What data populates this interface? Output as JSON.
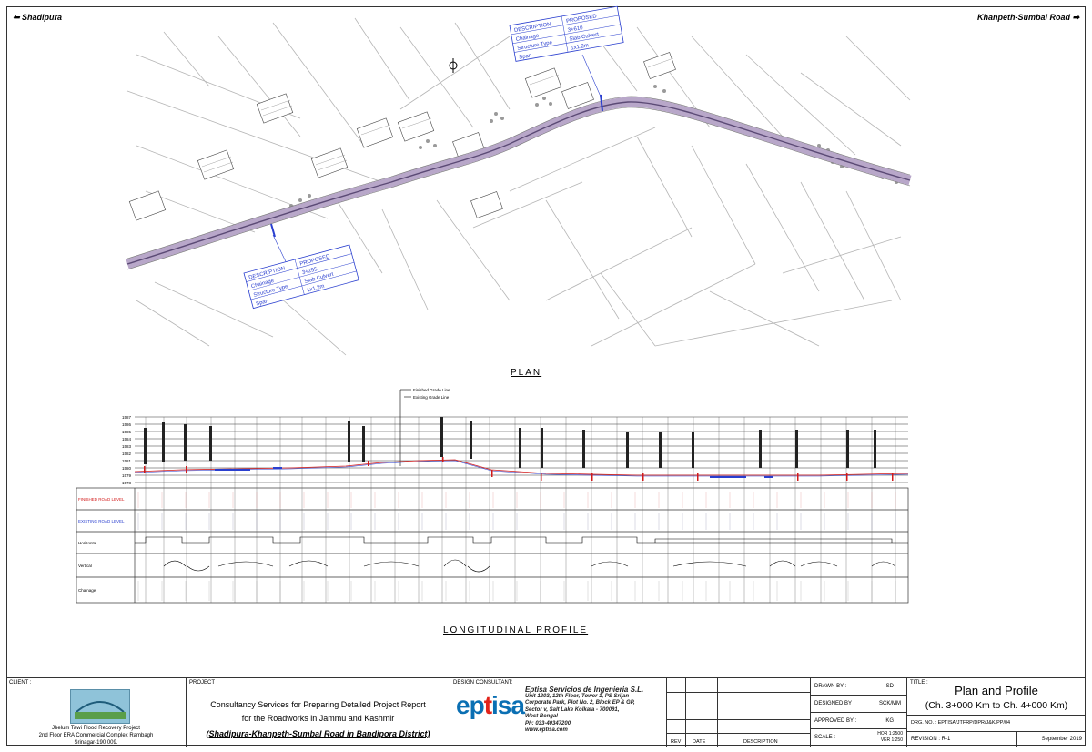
{
  "directions": {
    "left": "⬅ Shadipura",
    "right": "Khanpeth-Sumbal Road ➡"
  },
  "plan": {
    "title": "PLAN",
    "callout_top": {
      "header_desc": "DESCRIPTION",
      "header_prop": "PROPOSED",
      "r1k": "Chainage",
      "r1v": "3+610",
      "r2k": "Structure Type",
      "r2v": "Slab Culvert",
      "r3k": "Span",
      "r3v": "1x1.2m"
    },
    "callout_bottom": {
      "header_desc": "DESCRIPTION",
      "header_prop": "PROPOSED",
      "r1k": "Chainage",
      "r1v": "3+255",
      "r2k": "Structure Type",
      "r2v": "Slab Culvert",
      "r3k": "Span",
      "r3v": "1x1.2m"
    }
  },
  "profile": {
    "title": "LONGITUDINAL PROFILE",
    "legend": [
      "Finished Grade Line",
      "Existing Grade Line"
    ],
    "levels": [
      "1587",
      "1586",
      "1585",
      "1584",
      "1583",
      "1582",
      "1581",
      "1580",
      "1579",
      "1578"
    ],
    "row_labels": [
      "FINISHED ROAD LEVEL",
      "EXISTING ROAD LEVEL",
      "Horizontal",
      "Vertical",
      "Chainage"
    ]
  },
  "title_block": {
    "client_label": "CLIENT :",
    "client_lines": [
      "Jhelum Tawi Flood Recovery Project",
      "2nd Floor ERA Commercial Complex Rambagh",
      "Srinagar-190 009."
    ],
    "project_label": "PROJECT :",
    "project_lines": [
      "Consultancy Services for Preparing Detailed Project Report",
      "for the Roadworks in Jammu and Kashmir"
    ],
    "project_road": "(Shadipura-Khanpeth-Sumbal Road in Bandipora District)",
    "consultant_label": "DESIGN CONSULTANT:",
    "consultant_logo": {
      "a": "ep",
      "b": "t",
      "c": "isa"
    },
    "consultant_name": "Eptisa Servicios de Ingenieria S.L.",
    "consultant_lines": [
      "Unit 1203, 12th Floor, Tower 1, PS Srijan",
      "Corporate Park, Plot No. 2, Block EP & GP,",
      "Sector v, Salt Lake Kolkata - 700091,",
      "West Bengal",
      "Ph: 033-40347200",
      "www.eptisa.com"
    ],
    "rev_headers": {
      "rev": "REV",
      "date": "DATE",
      "desc": "DESCRIPTION"
    },
    "drawn_by": {
      "k": "DRAWN BY :",
      "v": "SD"
    },
    "designed_by": {
      "k": "DESIGNED BY :",
      "v": "SCK/MM"
    },
    "approved_by": {
      "k": "APPROVED BY :",
      "v": "KG"
    },
    "scale": {
      "k": "SCALE :",
      "hor": "HOR 1:2500",
      "ver": "VER 1:250"
    },
    "title_label": "TITLE :",
    "title_main": "Plan and Profile",
    "title_sub": "(Ch. 3+000 Km to Ch. 4+000 Km)",
    "drg_no": "DRG. NO. : EPTISA/JTFRP/DPR/J&K/PP/04",
    "revision": "REVISION : R-1",
    "date": "September 2019"
  }
}
